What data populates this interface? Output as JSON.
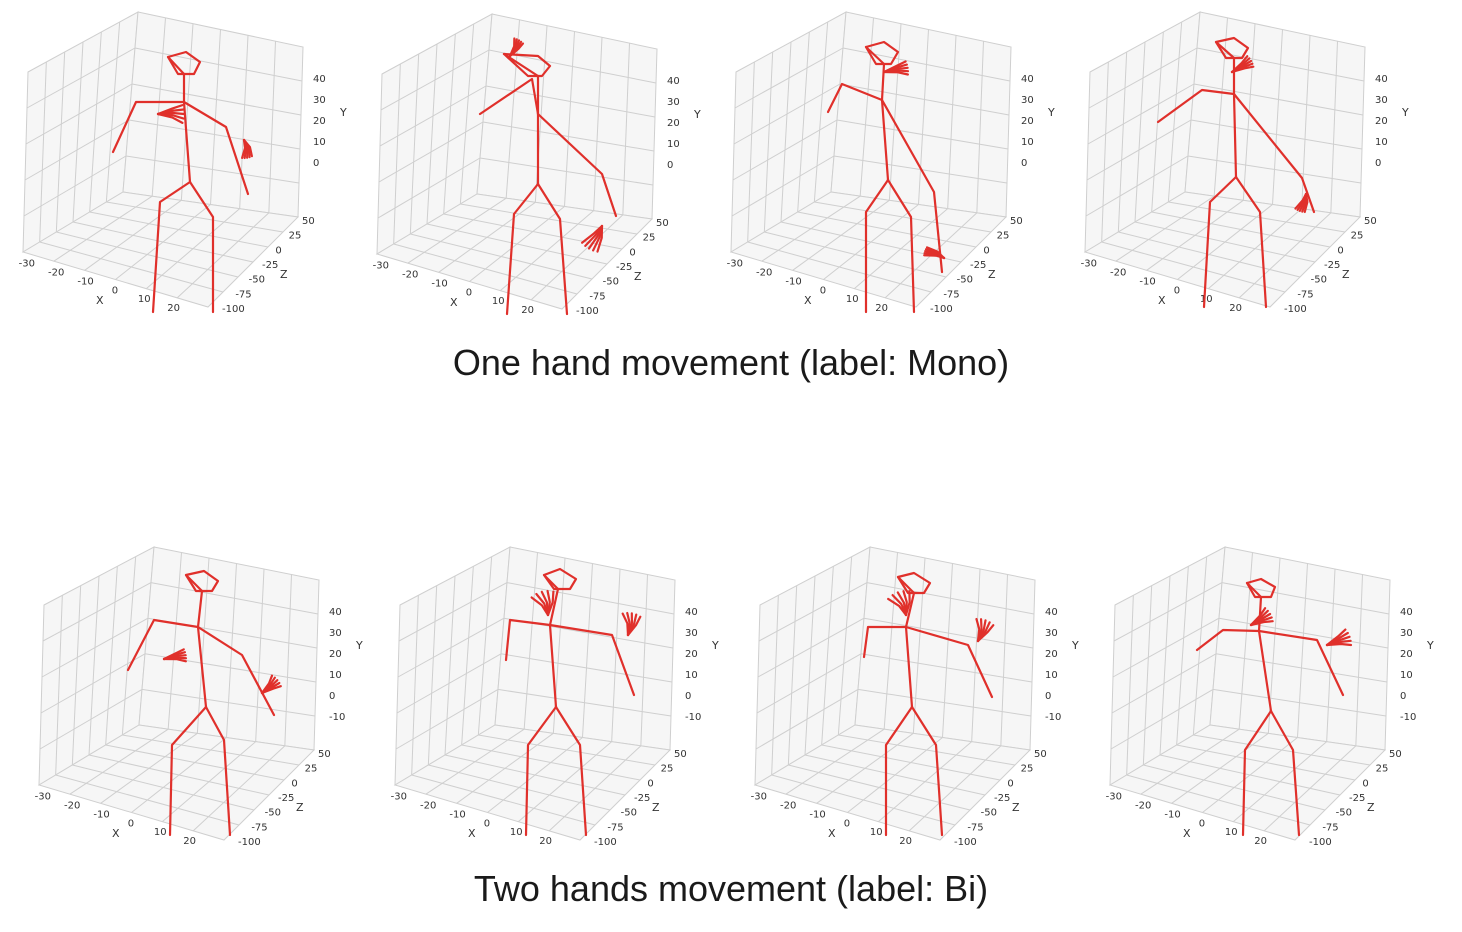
{
  "captions": {
    "mono": "One hand movement (label: Mono)",
    "bi": "Two hands movement (label: Bi)"
  },
  "axes": {
    "x_label": "X",
    "y_label": "Y",
    "z_label": "Z",
    "x_ticks": [
      "-30",
      "-20",
      "-10",
      "0",
      "10",
      "20"
    ],
    "z_ticks": [
      "50",
      "25",
      "0",
      "-25",
      "-50",
      "-75",
      "-100"
    ],
    "y_ticks_mono": [
      "40",
      "30",
      "20",
      "10",
      "0"
    ],
    "y_ticks_bi": [
      "40",
      "30",
      "20",
      "10",
      "0",
      "-10"
    ]
  },
  "colors": {
    "skeleton": "#e0302b",
    "grid": "#cfcfcf",
    "pane": "#f6f6f6"
  },
  "rows": {
    "mono": {
      "panels": [
        {
          "pose": "right-hand-raised-left-down"
        },
        {
          "pose": "right-hand-head-left-low"
        },
        {
          "pose": "right-hand-head-left-very-low"
        },
        {
          "pose": "right-hand-chest-left-low"
        }
      ]
    },
    "bi": {
      "panels": [
        {
          "pose": "both-hands-mid"
        },
        {
          "pose": "both-hands-raised"
        },
        {
          "pose": "both-hands-raised-wide"
        },
        {
          "pose": "both-hands-chest"
        }
      ]
    }
  }
}
